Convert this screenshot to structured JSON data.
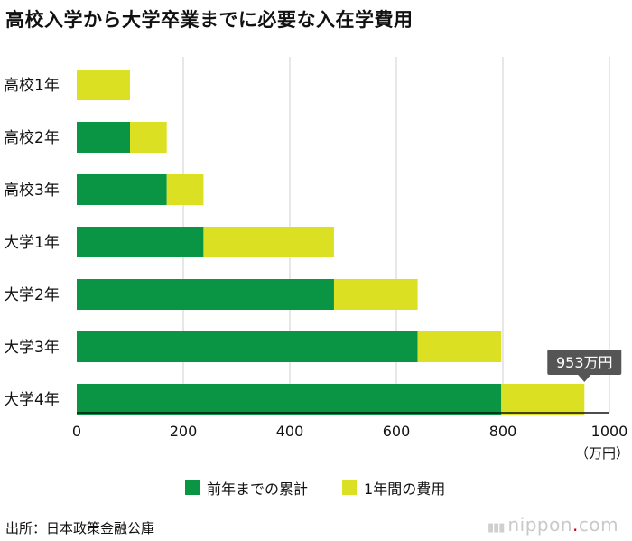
{
  "title": "高校入学から大学卒業までに必要な入在学費用",
  "source": "出所：日本政策金融公庫",
  "logo": {
    "text": "nippon",
    "dot": ".",
    "suffix": "com"
  },
  "colors": {
    "cumulative": "#0a9544",
    "annual": "#dbe023",
    "grid": "#cfcfcf",
    "callout": "#555555"
  },
  "chart_data": {
    "type": "bar",
    "orientation": "horizontal",
    "stacked": true,
    "title": "高校入学から大学卒業までに必要な入在学費用",
    "categories": [
      "高校1年",
      "高校2年",
      "高校3年",
      "大学1年",
      "大学2年",
      "大学3年",
      "大学4年"
    ],
    "series": [
      {
        "name": "前年までの累計",
        "values": [
          0,
          100,
          169,
          238,
          483,
          640,
          797
        ]
      },
      {
        "name": "1年間の費用",
        "values": [
          100,
          69,
          69,
          245,
          157,
          157,
          156
        ]
      }
    ],
    "xlim": [
      0,
      1000
    ],
    "xticks": [
      "0",
      "200",
      "400",
      "600",
      "800",
      "1000"
    ],
    "unit": "（万円）",
    "grid": true,
    "legend": "bottom",
    "annotation": {
      "category": "大学4年",
      "value": 953,
      "text": "953万円"
    }
  }
}
